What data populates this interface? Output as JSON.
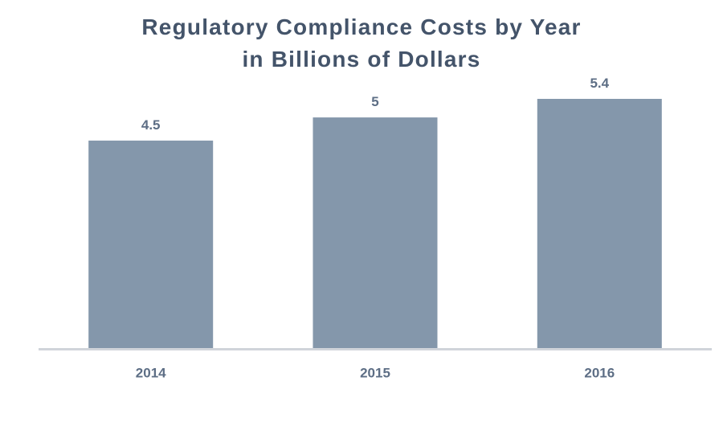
{
  "chart_data": {
    "type": "bar",
    "title_lines": [
      "Regulatory Compliance Costs by Year",
      "in Billions of Dollars"
    ],
    "categories": [
      "2014",
      "2015",
      "2016"
    ],
    "values": [
      4.5,
      5,
      5.4
    ],
    "value_labels": [
      "4.5",
      "5",
      "5.4"
    ],
    "xlabel": "",
    "ylabel": "",
    "ylim": [
      0,
      5.4
    ],
    "grid": false,
    "bar_color": "#8497ab",
    "axis_color": "#d0d4da",
    "text_color": "#5d6e85",
    "title_color": "#44546a"
  }
}
